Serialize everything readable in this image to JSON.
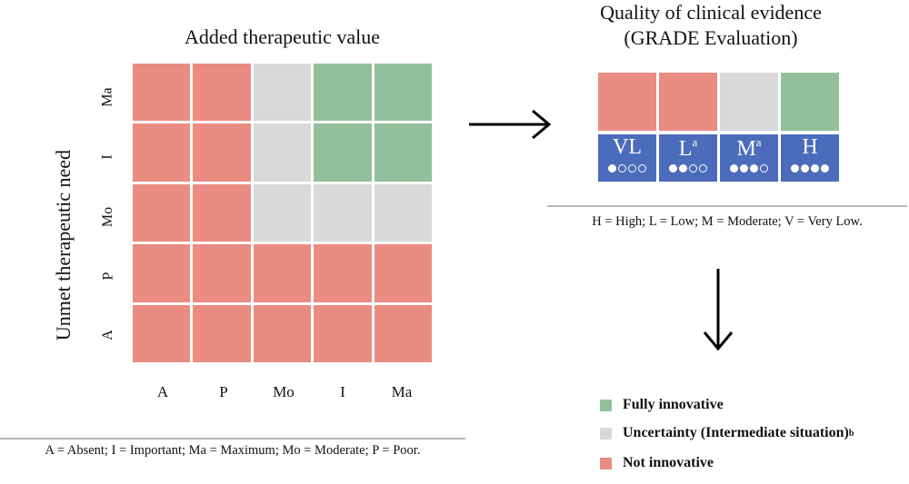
{
  "colors": {
    "red": "#ea8c82",
    "gray": "#d9d9d9",
    "green": "#92c09d",
    "blue": "#4b6cba"
  },
  "matrix": {
    "title": "Added therapeutic value",
    "y_axis_title": "Unmet therapeutic need",
    "row_labels": [
      "Ma",
      "I",
      "Mo",
      "P",
      "A"
    ],
    "col_labels": [
      "A",
      "P",
      "Mo",
      "I",
      "Ma"
    ],
    "cells": [
      [
        "red",
        "red",
        "gray",
        "green",
        "green"
      ],
      [
        "red",
        "red",
        "gray",
        "green",
        "green"
      ],
      [
        "red",
        "red",
        "gray",
        "gray",
        "gray"
      ],
      [
        "red",
        "red",
        "red",
        "red",
        "red"
      ],
      [
        "red",
        "red",
        "red",
        "red",
        "red"
      ]
    ],
    "footnote": "A = Absent; I = Important; Ma = Maximum; Mo = Moderate; P = Poor."
  },
  "grade": {
    "title_line1": "Quality of clinical evidence",
    "title_line2": "(GRADE Evaluation)",
    "levels": [
      {
        "label": "VL",
        "sup": "",
        "filled": 1,
        "color": "red"
      },
      {
        "label": "L",
        "sup": "a",
        "filled": 2,
        "color": "red"
      },
      {
        "label": "M",
        "sup": "a",
        "filled": 3,
        "color": "gray"
      },
      {
        "label": "H",
        "sup": "",
        "filled": 4,
        "color": "green"
      }
    ],
    "footnote": "H = High; L = Low; M = Moderate; V = Very Low."
  },
  "legend": [
    {
      "label": "Fully innovative",
      "sup": "",
      "color": "green"
    },
    {
      "label": "Uncertainty (Intermediate situation)",
      "sup": "b",
      "color": "gray"
    },
    {
      "label": "Not innovative",
      "sup": "",
      "color": "red"
    }
  ]
}
